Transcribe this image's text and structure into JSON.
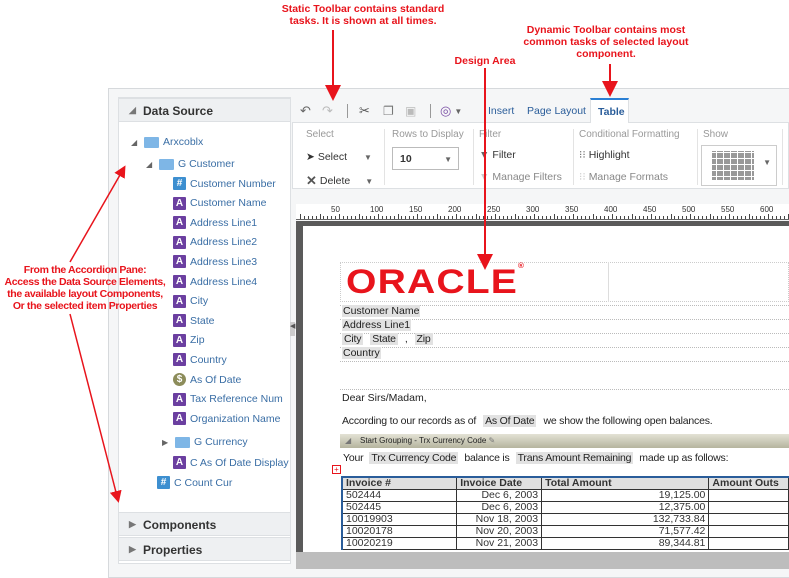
{
  "annotations": {
    "static_toolbar": [
      "Static Toolbar contains standard",
      "tasks. It is shown at all times."
    ],
    "dynamic_toolbar": [
      "Dynamic Toolbar contains most",
      "common tasks of selected layout",
      "component."
    ],
    "design_area": "Design Area",
    "accordion": [
      "From the Accordion Pane:",
      "Access the Data Source Elements,",
      "the available layout Components,",
      "Or the selected item Properties"
    ]
  },
  "accordion": {
    "data_source": "Data Source",
    "components": "Components",
    "properties": "Properties"
  },
  "tree": {
    "root": "Arxcoblx",
    "group": "G Customer",
    "fields": [
      {
        "label": "Customer Number",
        "type": "number"
      },
      {
        "label": "Customer Name",
        "type": "text"
      },
      {
        "label": "Address Line1",
        "type": "text"
      },
      {
        "label": "Address Line2",
        "type": "text"
      },
      {
        "label": "Address Line3",
        "type": "text"
      },
      {
        "label": "Address Line4",
        "type": "text"
      },
      {
        "label": "City",
        "type": "text"
      },
      {
        "label": "State",
        "type": "text"
      },
      {
        "label": "Zip",
        "type": "text"
      },
      {
        "label": "Country",
        "type": "text"
      },
      {
        "label": "As Of Date",
        "type": "date"
      },
      {
        "label": "Tax Reference Num",
        "type": "text"
      },
      {
        "label": "Organization Name",
        "type": "text"
      }
    ],
    "subgroup": "G Currency",
    "subfield": "C As Of Date Display",
    "count": "C Count Cur"
  },
  "tabs": [
    "Insert",
    "Page Layout",
    "Table"
  ],
  "active_tab": "Table",
  "ribbon": {
    "select_group": "Select",
    "select": "Select",
    "delete": "Delete",
    "rows_group": "Rows to Display",
    "rows_value": "10",
    "filter_group": "Filter",
    "filter": "Filter",
    "manage_filters": "Manage Filters",
    "cf_group": "Conditional Formatting",
    "highlight": "Highlight",
    "manage_formats": "Manage Formats",
    "show_group": "Show"
  },
  "ruler": [
    "50",
    "100",
    "150",
    "200",
    "250",
    "300",
    "350",
    "400",
    "450",
    "500",
    "550",
    "600"
  ],
  "document": {
    "logo": "ORACLE",
    "customer_name": "Customer Name",
    "address": "Address Line1",
    "city": "City",
    "state": "State",
    "comma": ",",
    "zip": "Zip",
    "country": "Country",
    "greeting": "Dear Sirs/Madam,",
    "records_pre": "According to our records as of",
    "as_of_date": "As Of Date",
    "records_post": "we show the following open balances.",
    "grouping": "Start Grouping - Trx Currency Code",
    "your": "Your",
    "trx_currency": "Trx Currency Code",
    "balance_is": "balance is",
    "trans_amount": "Trans Amount Remaining",
    "made_up": "made up as follows:",
    "table_headers": [
      "Invoice #",
      "Invoice Date",
      "Total Amount",
      "Amount Outs"
    ],
    "rows": [
      [
        "502444",
        "Dec 6, 2003",
        "19,125.00"
      ],
      [
        "502445",
        "Dec 6, 2003",
        "12,375.00"
      ],
      [
        "10019903",
        "Nov 18, 2003",
        "132,733.84"
      ],
      [
        "10020178",
        "Nov 20, 2003",
        "71,577.42"
      ],
      [
        "10020219",
        "Nov 21, 2003",
        "89,344.81"
      ]
    ]
  },
  "colors": {
    "annotation": "#e8141c",
    "oracle": "#e8141c",
    "text_field": "#6b3fa0",
    "number_field": "#3d8fd0",
    "tab_accent": "#2a7fd4"
  }
}
